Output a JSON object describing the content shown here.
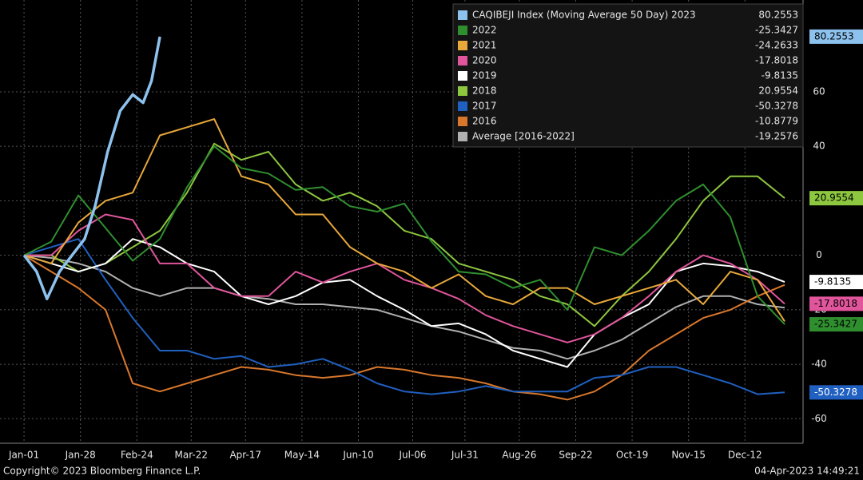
{
  "chart_data": {
    "type": "line",
    "xlim": [
      -11.5,
      372.8
    ],
    "xticks": [
      {
        "value": 0,
        "label": "Jan-01"
      },
      {
        "value": 27,
        "label": "Jan-28"
      },
      {
        "value": 54,
        "label": "Feb-24"
      },
      {
        "value": 80,
        "label": "Mar-22"
      },
      {
        "value": 106,
        "label": "Apr-17"
      },
      {
        "value": 133,
        "label": "May-14"
      },
      {
        "value": 160,
        "label": "Jun-10"
      },
      {
        "value": 186,
        "label": "Jul-06"
      },
      {
        "value": 211,
        "label": "Jul-31"
      },
      {
        "value": 237,
        "label": "Aug-26"
      },
      {
        "value": 264,
        "label": "Sep-22"
      },
      {
        "value": 291,
        "label": "Oct-19"
      },
      {
        "value": 318,
        "label": "Nov-15"
      },
      {
        "value": 345,
        "label": "Dec-12"
      }
    ],
    "ylim": [
      -69,
      93.7
    ],
    "yticks": [
      -60,
      -40,
      -20,
      0,
      20,
      40,
      60
    ],
    "grid": true,
    "legend": "top-right",
    "footer_left": "Copyright© 2023 Bloomberg Finance L.P.",
    "footer_right": "04-Apr-2023 14:49:21",
    "series": [
      {
        "name": "CAQIBEJI Index (Moving Average 50 Day) 2023",
        "color": "#8ec2ee",
        "value_box": true,
        "x": [
          0,
          6,
          11,
          17,
          23,
          29,
          34,
          40,
          46,
          52,
          57,
          61,
          65
        ],
        "values": [
          0,
          -6,
          -16,
          -6,
          0,
          6,
          18,
          38,
          53,
          59,
          56,
          64,
          80.2553
        ]
      },
      {
        "name": "2022",
        "color": "#2f8f2f",
        "value_box": true,
        "x": [
          0,
          13,
          26,
          39,
          52,
          65,
          78,
          91,
          104,
          117,
          130,
          143,
          156,
          169,
          182,
          195,
          208,
          221,
          234,
          247,
          260,
          273,
          286,
          299,
          312,
          325,
          338,
          351,
          364
        ],
        "values": [
          0,
          5,
          22,
          10,
          -2,
          6,
          25,
          40,
          32,
          30,
          24,
          25,
          18,
          16,
          19,
          5,
          -6,
          -7,
          -12,
          -9,
          -20,
          3,
          0,
          9,
          20,
          26,
          14,
          -15,
          -25.3427
        ]
      },
      {
        "name": "2021",
        "color": "#e8a83a",
        "value_box": false,
        "x": [
          0,
          13,
          26,
          39,
          52,
          65,
          78,
          91,
          104,
          117,
          130,
          143,
          156,
          169,
          182,
          195,
          208,
          221,
          234,
          247,
          260,
          273,
          286,
          299,
          312,
          325,
          338,
          351,
          364
        ],
        "values": [
          0,
          -3,
          12,
          20,
          23,
          44,
          47,
          50,
          29,
          26,
          15,
          15,
          3,
          -3,
          -6,
          -12,
          -7,
          -15,
          -18,
          -12,
          -12,
          -18,
          -15,
          -12,
          -9,
          -18,
          -6,
          -9,
          -24.2633
        ]
      },
      {
        "name": "2020",
        "color": "#e0559b",
        "value_box": true,
        "x": [
          0,
          13,
          26,
          39,
          52,
          65,
          78,
          91,
          104,
          117,
          130,
          143,
          156,
          169,
          182,
          195,
          208,
          221,
          234,
          247,
          260,
          273,
          286,
          299,
          312,
          325,
          338,
          351,
          364
        ],
        "values": [
          0,
          0,
          9,
          15,
          13,
          -3,
          -3,
          -12,
          -15,
          -15,
          -6,
          -10,
          -6,
          -3,
          -9,
          -12,
          -16,
          -22,
          -26,
          -29,
          -32,
          -29,
          -23,
          -15,
          -6,
          0,
          -3,
          -9,
          -17.8018
        ]
      },
      {
        "name": "2019",
        "color": "#ffffff",
        "value_box": true,
        "x": [
          0,
          13,
          26,
          39,
          52,
          65,
          78,
          91,
          104,
          117,
          130,
          143,
          156,
          169,
          182,
          195,
          208,
          221,
          234,
          247,
          260,
          273,
          286,
          299,
          312,
          325,
          338,
          351,
          364
        ],
        "values": [
          0,
          -3,
          -6,
          -3,
          6,
          3,
          -3,
          -6,
          -15,
          -18,
          -15,
          -10,
          -9,
          -15,
          -20,
          -26,
          -25,
          -29,
          -35,
          -38,
          -41,
          -29,
          -23,
          -18,
          -6,
          -3,
          -4,
          -6,
          -9.8135
        ]
      },
      {
        "name": "2018",
        "color": "#8dc63f",
        "value_box": true,
        "x": [
          0,
          13,
          26,
          39,
          52,
          65,
          78,
          91,
          104,
          117,
          130,
          143,
          156,
          169,
          182,
          195,
          208,
          221,
          234,
          247,
          260,
          273,
          286,
          299,
          312,
          325,
          338,
          351,
          364
        ],
        "values": [
          0,
          0,
          -6,
          -3,
          3,
          9,
          23,
          41,
          35,
          38,
          26,
          20,
          23,
          18,
          9,
          6,
          -3,
          -6,
          -9,
          -15,
          -18,
          -26,
          -15,
          -6,
          6,
          20,
          29,
          29,
          20.9554
        ]
      },
      {
        "name": "2017",
        "color": "#2060c0",
        "value_box": true,
        "x": [
          0,
          13,
          26,
          39,
          52,
          65,
          78,
          91,
          104,
          117,
          130,
          143,
          156,
          169,
          182,
          195,
          208,
          221,
          234,
          247,
          260,
          273,
          286,
          299,
          312,
          325,
          338,
          351,
          364
        ],
        "values": [
          0,
          3,
          6,
          -9,
          -23,
          -35,
          -35,
          -38,
          -37,
          -41,
          -40,
          -38,
          -42,
          -47,
          -50,
          -51,
          -50,
          -48,
          -50,
          -50,
          -50,
          -45,
          -44,
          -41,
          -41,
          -44,
          -47,
          -51,
          -50.3278
        ]
      },
      {
        "name": "2016",
        "color": "#d8772c",
        "value_box": false,
        "x": [
          0,
          13,
          26,
          39,
          52,
          65,
          78,
          91,
          104,
          117,
          130,
          143,
          156,
          169,
          182,
          195,
          208,
          221,
          234,
          247,
          260,
          273,
          286,
          299,
          312,
          325,
          338,
          351,
          364
        ],
        "values": [
          0,
          -6,
          -12,
          -20,
          -47,
          -50,
          -47,
          -44,
          -41,
          -42,
          -44,
          -45,
          -44,
          -41,
          -42,
          -44,
          -45,
          -47,
          -50,
          -51,
          -53,
          -50,
          -44,
          -35,
          -29,
          -23,
          -20,
          -15,
          -10.8779
        ]
      },
      {
        "name": "Average  [2016-2022]",
        "color": "#b0b0b0",
        "value_box": false,
        "x": [
          0,
          13,
          26,
          39,
          52,
          65,
          78,
          91,
          104,
          117,
          130,
          143,
          156,
          169,
          182,
          195,
          208,
          221,
          234,
          247,
          260,
          273,
          286,
          299,
          312,
          325,
          338,
          351,
          364
        ],
        "values": [
          0,
          -1,
          -3,
          -6,
          -12,
          -15,
          -12,
          -12,
          -15,
          -16,
          -18,
          -18,
          -19,
          -20,
          -23,
          -26,
          -28,
          -31,
          -34,
          -35,
          -38,
          -35,
          -31,
          -25,
          -19,
          -15,
          -15,
          -18,
          -19.2576
        ]
      }
    ]
  }
}
